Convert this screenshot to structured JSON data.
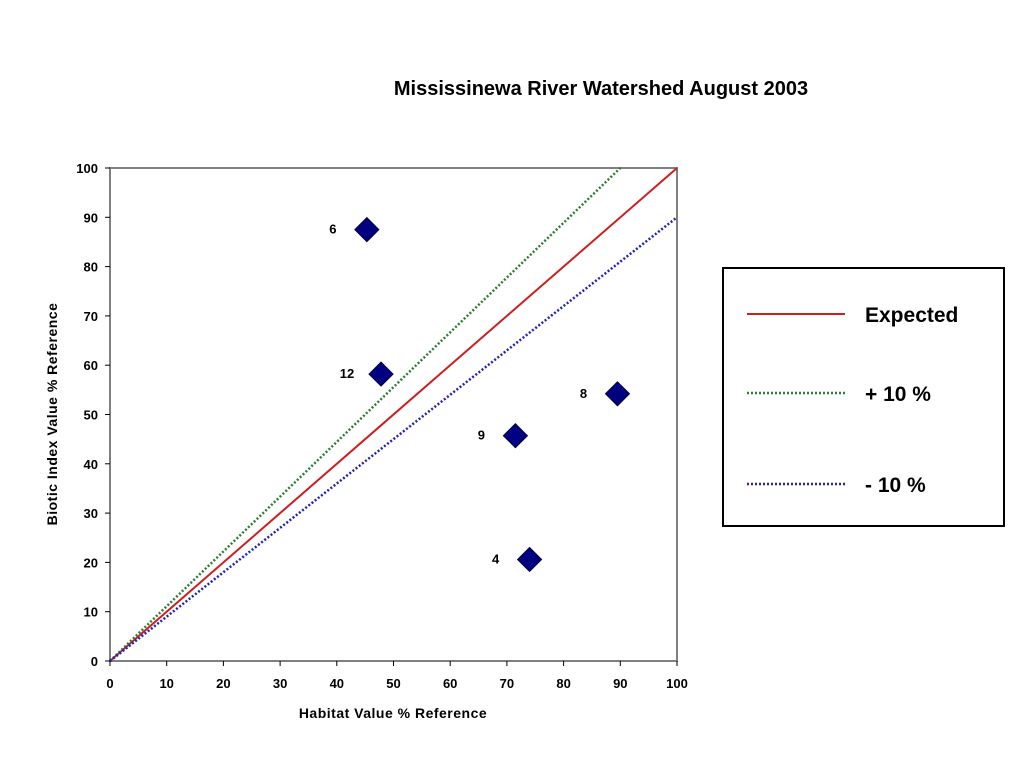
{
  "chart_data": {
    "type": "scatter",
    "title": "Mississinewa River Watershed August 2003",
    "xlabel": "Habitat Value % Reference",
    "ylabel": "Biotic Index Value % Reference",
    "xlim": [
      0,
      100
    ],
    "ylim": [
      0,
      100
    ],
    "xticks": [
      "0",
      "10",
      "20",
      "30",
      "40",
      "50",
      "60",
      "70",
      "80",
      "90",
      "100"
    ],
    "yticks": [
      "0",
      "10",
      "20",
      "30",
      "40",
      "50",
      "60",
      "70",
      "80",
      "90",
      "100"
    ],
    "grid": false,
    "legend_position": "right",
    "points": [
      {
        "label": "6",
        "x": 45.3,
        "y": 87.5
      },
      {
        "label": "12",
        "x": 47.8,
        "y": 58.2
      },
      {
        "label": "8",
        "x": 89.5,
        "y": 54.2
      },
      {
        "label": "9",
        "x": 71.5,
        "y": 45.7
      },
      {
        "label": "4",
        "x": 74.0,
        "y": 20.6
      }
    ],
    "marker_color": "#000080",
    "series": [
      {
        "name": "Expected",
        "style": "solid",
        "color": "#cc1f1f",
        "slope": 1.0
      },
      {
        "name": "+ 10 %",
        "style": "dotted",
        "color": "#2e7d32",
        "slope": 1.1111
      },
      {
        "name": "- 10 %",
        "style": "dotted",
        "color": "#2222bb",
        "slope": 0.9
      }
    ]
  }
}
